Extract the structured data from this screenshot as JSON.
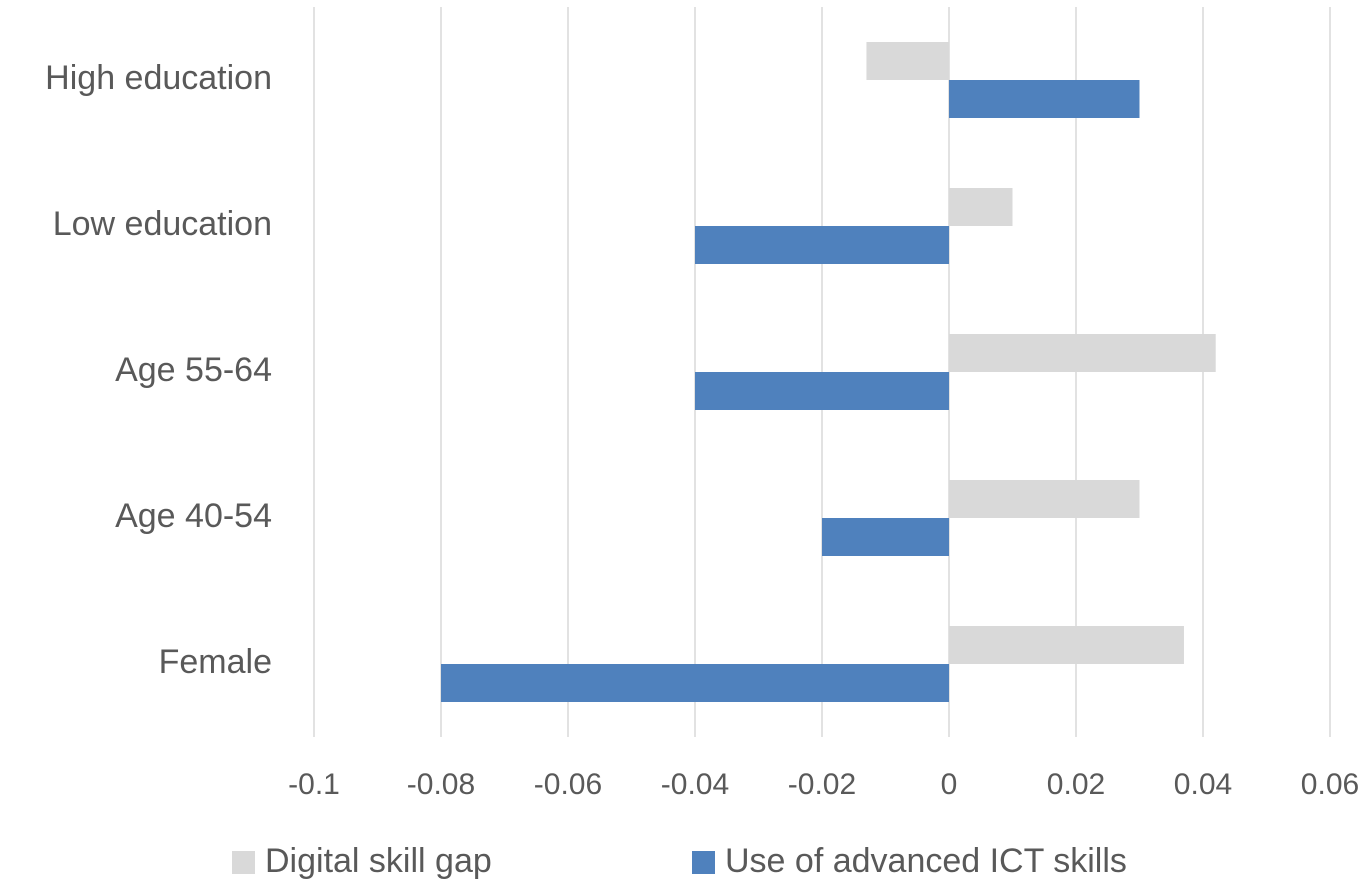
{
  "chart_data": {
    "type": "barh",
    "categories": [
      "High education",
      "Low education",
      "Age 55-64",
      "Age 40-54",
      "Female"
    ],
    "series": [
      {
        "name": "Digital skill gap",
        "color": "#d9d9d9",
        "values": [
          -0.013,
          0.01,
          0.042,
          0.03,
          0.037
        ]
      },
      {
        "name": "Use of advanced ICT skills",
        "color": "#4f81bd",
        "values": [
          0.03,
          -0.04,
          -0.04,
          -0.02,
          -0.08
        ]
      }
    ],
    "xlim": [
      -0.1,
      0.06
    ],
    "xticks": [
      -0.1,
      -0.08,
      -0.06,
      -0.04,
      -0.02,
      0,
      0.02,
      0.04,
      0.06
    ],
    "grid": true,
    "legend": "bottom"
  }
}
